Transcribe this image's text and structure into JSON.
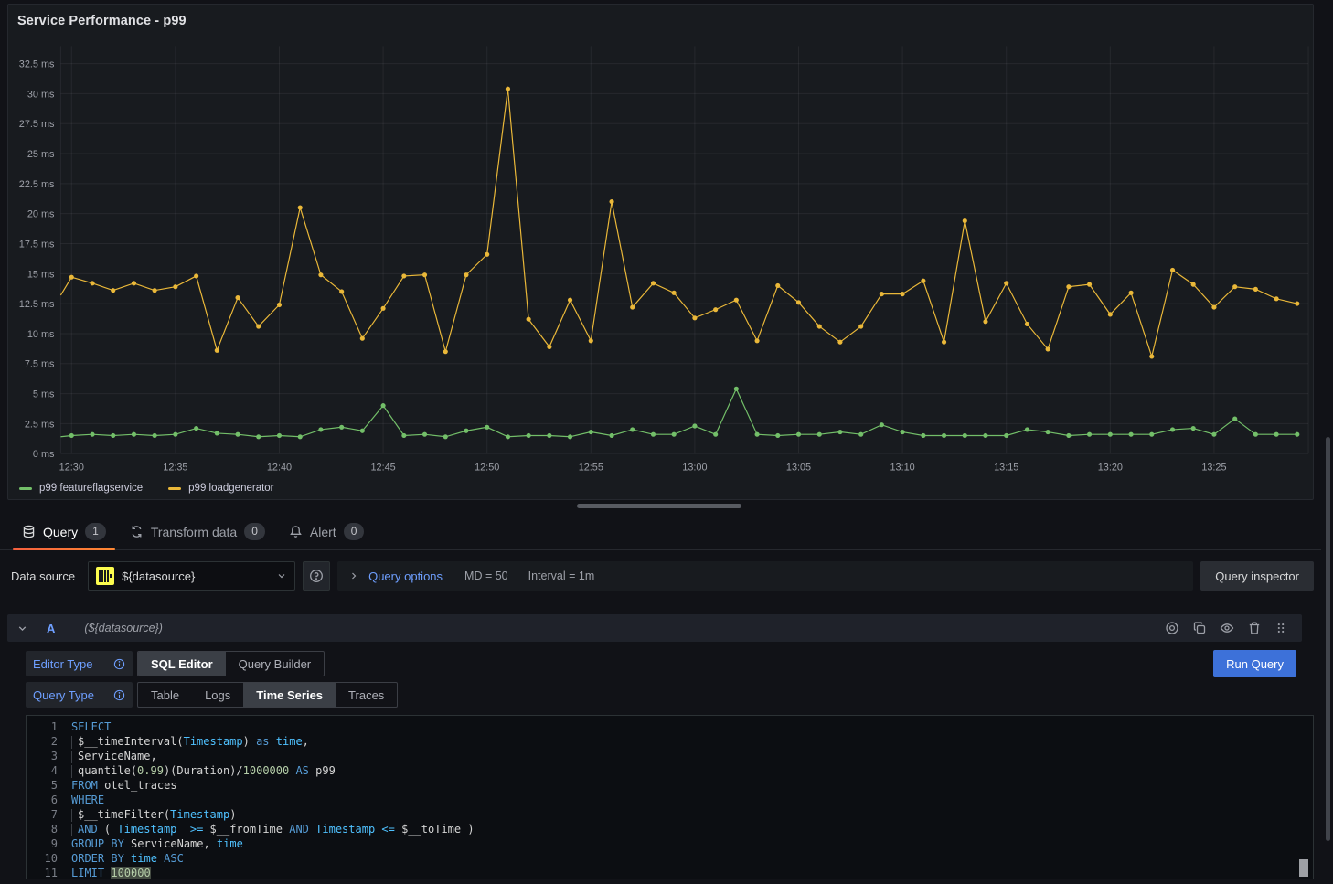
{
  "panel": {
    "title": "Service Performance - p99",
    "legend": [
      {
        "label": "p99 featureflagservice",
        "color": "#73BF69"
      },
      {
        "label": "p99 loadgenerator",
        "color": "#EAB839"
      }
    ]
  },
  "chart_data": {
    "type": "line",
    "title": "Service Performance - p99",
    "ylabel": "",
    "xlabel": "",
    "unit": "ms",
    "grid": true,
    "legend_position": "bottom-left",
    "ylim": [
      0,
      34
    ],
    "y_ticks": [
      0,
      2.5,
      5,
      7.5,
      10,
      12.5,
      15,
      17.5,
      20,
      22.5,
      25,
      27.5,
      30,
      32.5
    ],
    "y_tick_labels": [
      "0 ms",
      "2.5 ms",
      "5 ms",
      "7.5 ms",
      "10 ms",
      "12.5 ms",
      "15 ms",
      "17.5 ms",
      "20 ms",
      "22.5 ms",
      "25 ms",
      "27.5 ms",
      "30 ms",
      "32.5 ms"
    ],
    "x_tick_labels": [
      "12:30",
      "12:35",
      "12:40",
      "12:45",
      "12:50",
      "12:55",
      "13:00",
      "13:05",
      "13:10",
      "13:15",
      "13:20",
      "13:25"
    ],
    "x": [
      "12:30",
      "12:31",
      "12:32",
      "12:33",
      "12:34",
      "12:35",
      "12:36",
      "12:37",
      "12:38",
      "12:39",
      "12:40",
      "12:41",
      "12:42",
      "12:43",
      "12:44",
      "12:45",
      "12:46",
      "12:47",
      "12:48",
      "12:49",
      "12:50",
      "12:51",
      "12:52",
      "12:53",
      "12:54",
      "12:55",
      "12:56",
      "12:57",
      "12:58",
      "12:59",
      "13:00",
      "13:01",
      "13:02",
      "13:03",
      "13:04",
      "13:05",
      "13:06",
      "13:07",
      "13:08",
      "13:09",
      "13:10",
      "13:11",
      "13:12",
      "13:13",
      "13:14",
      "13:15",
      "13:16",
      "13:17",
      "13:18",
      "13:19",
      "13:20",
      "13:21",
      "13:22",
      "13:23",
      "13:24",
      "13:25",
      "13:26",
      "13:27",
      "13:28",
      "13:29"
    ],
    "series": [
      {
        "name": "p99 loadgenerator",
        "color": "#EAB839",
        "lead_value": 13.2,
        "values": [
          14.7,
          14.2,
          13.6,
          14.2,
          13.6,
          13.9,
          14.8,
          8.6,
          13.0,
          10.6,
          12.4,
          20.5,
          14.9,
          13.5,
          9.6,
          12.1,
          14.8,
          14.9,
          8.5,
          14.9,
          16.6,
          30.4,
          11.2,
          8.9,
          12.8,
          9.4,
          21.0,
          12.2,
          14.2,
          13.4,
          11.3,
          12.0,
          12.8,
          9.4,
          14.0,
          12.6,
          10.6,
          9.3,
          10.6,
          13.3,
          13.3,
          14.4,
          9.3,
          19.4,
          11.0,
          14.2,
          10.8,
          8.7,
          13.9,
          14.1,
          11.6,
          13.4,
          8.1,
          15.3,
          14.1,
          12.2,
          13.9,
          13.7,
          12.9,
          12.5
        ]
      },
      {
        "name": "p99 featureflagservice",
        "color": "#73BF69",
        "lead_value": 1.4,
        "values": [
          1.5,
          1.6,
          1.5,
          1.6,
          1.5,
          1.6,
          2.1,
          1.7,
          1.6,
          1.4,
          1.5,
          1.4,
          2.0,
          2.2,
          1.9,
          4.0,
          1.5,
          1.6,
          1.4,
          1.9,
          2.2,
          1.4,
          1.5,
          1.5,
          1.4,
          1.8,
          1.5,
          2.0,
          1.6,
          1.6,
          2.3,
          1.6,
          5.4,
          1.6,
          1.5,
          1.6,
          1.6,
          1.8,
          1.6,
          2.4,
          1.8,
          1.5,
          1.5,
          1.5,
          1.5,
          1.5,
          2.0,
          1.8,
          1.5,
          1.6,
          1.6,
          1.6,
          1.6,
          2.0,
          2.1,
          1.6,
          2.9,
          1.6,
          1.6,
          1.6
        ]
      }
    ]
  },
  "tabs": [
    {
      "label": "Query",
      "count": "1",
      "icon": "database-icon",
      "active": true
    },
    {
      "label": "Transform data",
      "count": "0",
      "icon": "transform-icon",
      "active": false
    },
    {
      "label": "Alert",
      "count": "0",
      "icon": "bell-icon",
      "active": false
    }
  ],
  "toolbar": {
    "datasource_label": "Data source",
    "datasource_value": "${datasource}",
    "query_options_label": "Query options",
    "md": "MD = 50",
    "interval": "Interval = 1m",
    "query_inspector_label": "Query inspector"
  },
  "query_row": {
    "ref_id": "A",
    "datasource_hint": "(${datasource})",
    "editor_type_label": "Editor Type",
    "editor_type_options": [
      "SQL Editor",
      "Query Builder"
    ],
    "editor_type_selected": "SQL Editor",
    "query_type_label": "Query Type",
    "query_type_options": [
      "Table",
      "Logs",
      "Time Series",
      "Traces"
    ],
    "query_type_selected": "Time Series",
    "run_query_label": "Run Query"
  },
  "sql": {
    "lines": [
      {
        "n": 1,
        "indent": 0,
        "tokens": [
          [
            "SELECT",
            "kw"
          ]
        ]
      },
      {
        "n": 2,
        "indent": 1,
        "tokens": [
          [
            "$__timeInterval(",
            "pl"
          ],
          [
            "Timestamp",
            "id"
          ],
          [
            ") ",
            "pl"
          ],
          [
            "as",
            "kw"
          ],
          [
            " ",
            "pl"
          ],
          [
            "time",
            "id"
          ],
          [
            ",",
            "pl"
          ]
        ]
      },
      {
        "n": 3,
        "indent": 1,
        "tokens": [
          [
            "ServiceName,",
            "pl"
          ]
        ]
      },
      {
        "n": 4,
        "indent": 1,
        "tokens": [
          [
            "quantile(",
            "pl"
          ],
          [
            "0.99",
            "num"
          ],
          [
            ")(Duration)/",
            "pl"
          ],
          [
            "1000000",
            "num"
          ],
          [
            " ",
            "pl"
          ],
          [
            "AS",
            "kw"
          ],
          [
            " p99",
            "pl"
          ]
        ]
      },
      {
        "n": 5,
        "indent": 0,
        "tokens": [
          [
            "FROM",
            "kw"
          ],
          [
            " otel_traces",
            "pl"
          ]
        ]
      },
      {
        "n": 6,
        "indent": 0,
        "tokens": [
          [
            "WHERE",
            "kw"
          ]
        ]
      },
      {
        "n": 7,
        "indent": 1,
        "tokens": [
          [
            "$__timeFilter(",
            "pl"
          ],
          [
            "Timestamp",
            "id"
          ],
          [
            ")",
            "pl"
          ]
        ]
      },
      {
        "n": 8,
        "indent": 1,
        "tokens": [
          [
            "AND",
            "kw"
          ],
          [
            " ( ",
            "pl"
          ],
          [
            "Timestamp",
            "id"
          ],
          [
            "  ",
            "pl"
          ],
          [
            ">=",
            "id"
          ],
          [
            " $__fromTime ",
            "pl"
          ],
          [
            "AND",
            "kw"
          ],
          [
            " ",
            "pl"
          ],
          [
            "Timestamp",
            "id"
          ],
          [
            " ",
            "pl"
          ],
          [
            "<=",
            "id"
          ],
          [
            " $__toTime )",
            "pl"
          ]
        ]
      },
      {
        "n": 9,
        "indent": 0,
        "tokens": [
          [
            "GROUP BY",
            "kw"
          ],
          [
            " ServiceName, ",
            "pl"
          ],
          [
            "time",
            "id"
          ]
        ]
      },
      {
        "n": 10,
        "indent": 0,
        "tokens": [
          [
            "ORDER BY",
            "kw"
          ],
          [
            " ",
            "pl"
          ],
          [
            "time",
            "id"
          ],
          [
            " ",
            "pl"
          ],
          [
            "ASC",
            "kw"
          ]
        ]
      },
      {
        "n": 11,
        "indent": 0,
        "tokens": [
          [
            "LIMIT",
            "kw"
          ],
          [
            " ",
            "pl"
          ],
          [
            "100000",
            "numsel"
          ]
        ]
      }
    ]
  },
  "colors": {
    "background": "#111217",
    "panel_background": "#181b1f",
    "accent_blue": "#3d71d9",
    "link_blue": "#6e9fff",
    "active_tab_orange": "#ff780a",
    "series_yellow": "#EAB839",
    "series_green": "#73BF69"
  }
}
